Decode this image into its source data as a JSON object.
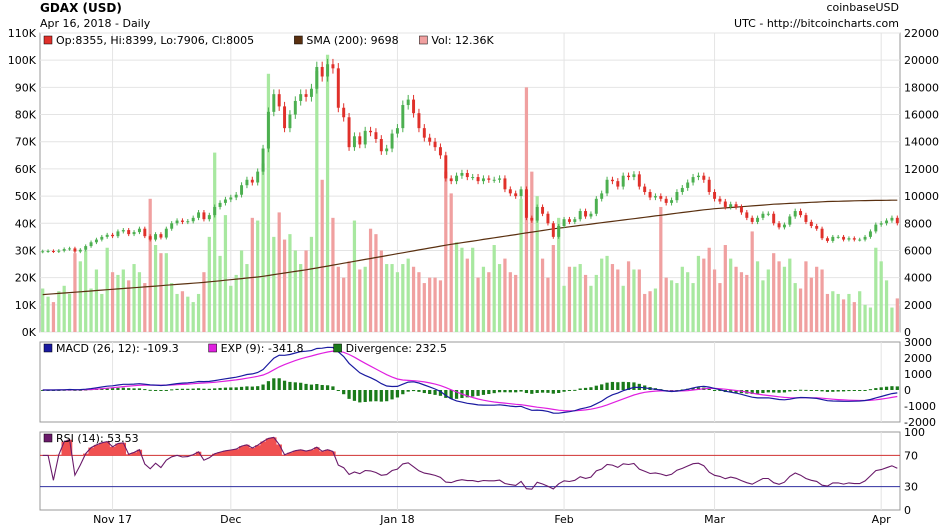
{
  "header": {
    "title": "GDAX (USD)",
    "subtitle": "Apr 16, 2018 - Daily",
    "source": "coinbaseUSD",
    "credit": "UTC - http://bitcoincharts.com"
  },
  "colors": {
    "up": "#4caf50",
    "down": "#e0302a",
    "vol_up": "#a8e8a0",
    "vol_down": "#f0a0a0",
    "sma": "#5a3010",
    "macd": "#1a1aa0",
    "exp": "#e020e0",
    "divergence": "#1a7a1a",
    "rsi": "#6a1a6a",
    "rsi_fill": "#f05050",
    "rsi70": "#d03030",
    "rsi30": "#3030a0"
  },
  "chart_data": [
    {
      "type": "candlestick",
      "panel": "price",
      "legend": [
        {
          "label": "Op:8355, Hi:8399, Lo:7906, Cl:8005",
          "color": "#e0302a"
        },
        {
          "label": "SMA (200): 9698",
          "color": "#5a3010"
        },
        {
          "label": "Vol: 12.36K",
          "color": "#f0a0a0"
        }
      ],
      "x_ticks": [
        "Nov 17",
        "Dec",
        "Jan 18",
        "Feb",
        "Mar",
        "Apr"
      ],
      "x_tick_days": [
        13,
        35,
        66,
        97,
        125,
        156
      ],
      "volume_ticks": [
        "0K",
        "10K",
        "20K",
        "30K",
        "40K",
        "50K",
        "60K",
        "70K",
        "80K",
        "90K",
        "100K",
        "110K"
      ],
      "volume_range": [
        0,
        110000
      ],
      "price_ticks": [
        "0",
        "2000",
        "4000",
        "6000",
        "8000",
        "10000",
        "12000",
        "14000",
        "16000",
        "18000",
        "20000",
        "22000"
      ],
      "price_range": [
        0,
        22000
      ],
      "closes": [
        5940,
        5960,
        5930,
        5980,
        6100,
        6150,
        5920,
        6050,
        6320,
        6600,
        6800,
        7000,
        7150,
        7050,
        7400,
        7500,
        7200,
        7350,
        7600,
        7050,
        6800,
        7200,
        6950,
        7600,
        8000,
        8200,
        8100,
        8150,
        8400,
        8800,
        8300,
        8600,
        9200,
        9500,
        9750,
        9900,
        10100,
        10800,
        11200,
        11000,
        11800,
        13500,
        16200,
        17500,
        16600,
        15000,
        16000,
        17000,
        17500,
        17300,
        17900,
        19500,
        18800,
        19700,
        19400,
        16500,
        15800,
        13600,
        14400,
        13800,
        14800,
        14700,
        14200,
        13300,
        13500,
        14600,
        15000,
        16700,
        17100,
        16100,
        15000,
        14300,
        14000,
        13600,
        13000,
        11300,
        11100,
        11500,
        11700,
        11400,
        11400,
        11100,
        11300,
        11200,
        11200,
        11300,
        10500,
        10200,
        10000,
        10500,
        8400,
        8200,
        9200,
        8700,
        8000,
        7000,
        7800,
        8300,
        8100,
        8300,
        8900,
        8500,
        8700,
        9800,
        10200,
        11200,
        11100,
        10700,
        11500,
        11400,
        11600,
        10700,
        10300,
        9900,
        10000,
        9800,
        9500,
        9700,
        10300,
        10600,
        11000,
        11400,
        11500,
        11200,
        10300,
        9800,
        9600,
        9200,
        9400,
        9200,
        8800,
        8400,
        8100,
        8400,
        8700,
        8700,
        8000,
        7700,
        7900,
        8500,
        8900,
        8600,
        8100,
        7800,
        7600,
        6900,
        6700,
        7000,
        7000,
        6800,
        6900,
        6800,
        6800,
        7000,
        7400,
        7900,
        8000,
        8200,
        8400,
        8005
      ],
      "volumes": [
        16000,
        13000,
        11000,
        15000,
        17000,
        14000,
        29000,
        26000,
        30000,
        16000,
        23000,
        14000,
        31000,
        22000,
        21000,
        23000,
        19000,
        25000,
        22000,
        18000,
        49000,
        32000,
        29000,
        29000,
        18000,
        14000,
        15000,
        13000,
        11000,
        14000,
        22000,
        35000,
        66000,
        28000,
        43000,
        17000,
        21000,
        30000,
        25000,
        42000,
        41000,
        62000,
        95000,
        35000,
        44000,
        34000,
        36000,
        30000,
        25000,
        30000,
        35000,
        96000,
        56000,
        102000,
        42000,
        24000,
        20000,
        26000,
        41000,
        23000,
        24000,
        38000,
        36000,
        30000,
        25000,
        25000,
        22000,
        25000,
        27000,
        24000,
        22000,
        18000,
        20000,
        20000,
        19000,
        59000,
        51000,
        33000,
        31000,
        27000,
        31000,
        20000,
        24000,
        22000,
        32000,
        25000,
        27000,
        22000,
        21000,
        49000,
        90000,
        59000,
        50000,
        27000,
        20000,
        32000,
        42000,
        17000,
        24000,
        24000,
        25000,
        21000,
        17000,
        21000,
        27000,
        28000,
        25000,
        23000,
        17000,
        26000,
        23000,
        23000,
        14000,
        15000,
        16000,
        46000,
        20000,
        19000,
        18000,
        24000,
        22000,
        18000,
        28000,
        27000,
        31000,
        23000,
        18000,
        32000,
        27000,
        24000,
        22000,
        21000,
        37000,
        26000,
        19000,
        23000,
        29000,
        26000,
        24000,
        27000,
        18000,
        16000,
        26000,
        20000,
        24000,
        23000,
        14000,
        15000,
        14000,
        12000,
        14000,
        11000,
        15000,
        10000,
        9000,
        31000,
        26000,
        19000,
        9000,
        12360
      ],
      "sma200": [
        2750,
        2780,
        2810,
        2840,
        2870,
        2900,
        2930,
        2960,
        2990,
        3020,
        3050,
        3080,
        3110,
        3140,
        3170,
        3200,
        3230,
        3260,
        3290,
        3320,
        3350,
        3380,
        3410,
        3440,
        3470,
        3500,
        3530,
        3560,
        3590,
        3620,
        3650,
        3690,
        3730,
        3770,
        3810,
        3850,
        3890,
        3930,
        3970,
        4010,
        4050,
        4100,
        4160,
        4220,
        4280,
        4340,
        4400,
        4460,
        4520,
        4580,
        4640,
        4710,
        4780,
        4850,
        4920,
        4990,
        5060,
        5130,
        5200,
        5270,
        5340,
        5410,
        5480,
        5550,
        5620,
        5690,
        5760,
        5830,
        5900,
        5970,
        6040,
        6110,
        6180,
        6250,
        6320,
        6390,
        6450,
        6510,
        6570,
        6630,
        6690,
        6750,
        6810,
        6870,
        6930,
        6990,
        7050,
        7110,
        7170,
        7230,
        7290,
        7350,
        7410,
        7470,
        7530,
        7590,
        7640,
        7690,
        7740,
        7790,
        7840,
        7890,
        7940,
        7990,
        8040,
        8090,
        8140,
        8190,
        8240,
        8290,
        8340,
        8390,
        8440,
        8490,
        8540,
        8590,
        8640,
        8690,
        8740,
        8790,
        8840,
        8890,
        8940,
        8990,
        9030,
        9070,
        9100,
        9130,
        9160,
        9190,
        9220,
        9250,
        9280,
        9310,
        9340,
        9370,
        9400,
        9420,
        9440,
        9460,
        9480,
        9500,
        9520,
        9540,
        9560,
        9580,
        9600,
        9610,
        9620,
        9630,
        9640,
        9650,
        9660,
        9670,
        9675,
        9680,
        9685,
        9690,
        9695,
        9698
      ]
    },
    {
      "type": "line",
      "panel": "macd",
      "legend": [
        {
          "label": "MACD (26, 12): -109.3",
          "color": "#1a1aa0"
        },
        {
          "label": "EXP (9): -341.8",
          "color": "#e020e0"
        },
        {
          "label": "Divergence: 232.5",
          "color": "#1a7a1a"
        }
      ],
      "y_ticks": [
        "3000",
        "2000",
        "1000",
        "0",
        "-1000",
        "-2000"
      ],
      "y_range": [
        -2000,
        3000
      ]
    },
    {
      "type": "line",
      "panel": "rsi",
      "legend": [
        {
          "label": "RSI (14): 53.53",
          "color": "#6a1a6a"
        }
      ],
      "y_ticks": [
        "100",
        "70",
        "30",
        "0"
      ],
      "y_range": [
        0,
        100
      ],
      "levels": [
        70,
        30
      ]
    }
  ]
}
